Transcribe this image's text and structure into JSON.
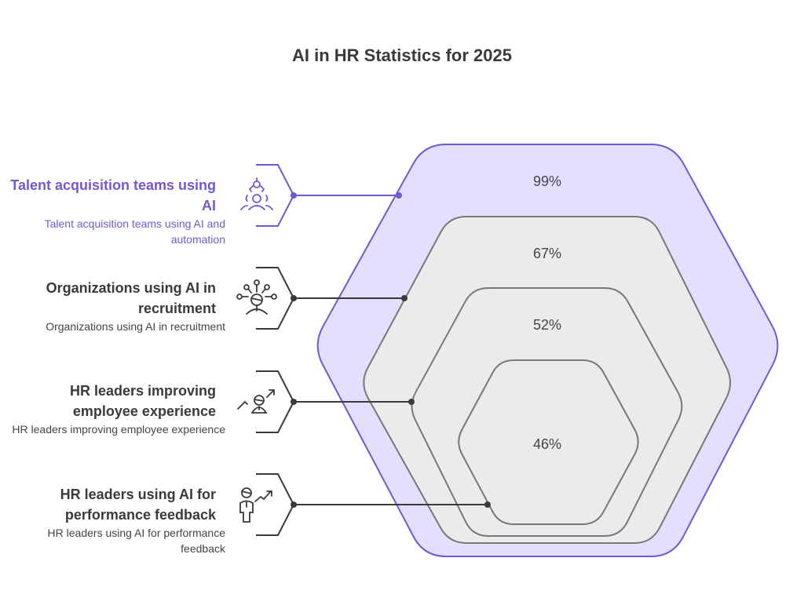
{
  "title": "AI in HR Statistics for 2025",
  "colors": {
    "accent": "#7458d3",
    "accent_fill": "#e4deff",
    "gray_fill": "#ebebeb",
    "gray_stroke": "#777777",
    "text": "#3a3a3a"
  },
  "items": [
    {
      "heading": "Talent acquisition teams using AI",
      "description": "Talent acquisition teams using AI and automation",
      "value": "99%",
      "icon": "people-network-icon",
      "accent": true
    },
    {
      "heading": "Organizations using AI in recruitment",
      "description": "Organizations using AI in recruitment",
      "value": "67%",
      "icon": "person-connections-icon",
      "accent": false
    },
    {
      "heading": "HR leaders improving employee experience",
      "description": "HR leaders improving employee experience",
      "value": "52%",
      "icon": "person-growth-icon",
      "accent": false
    },
    {
      "heading": "HR leaders using AI for performance feedback",
      "description": "HR leaders using AI for performance feedback",
      "value": "46%",
      "icon": "person-trend-icon",
      "accent": false
    }
  ]
}
